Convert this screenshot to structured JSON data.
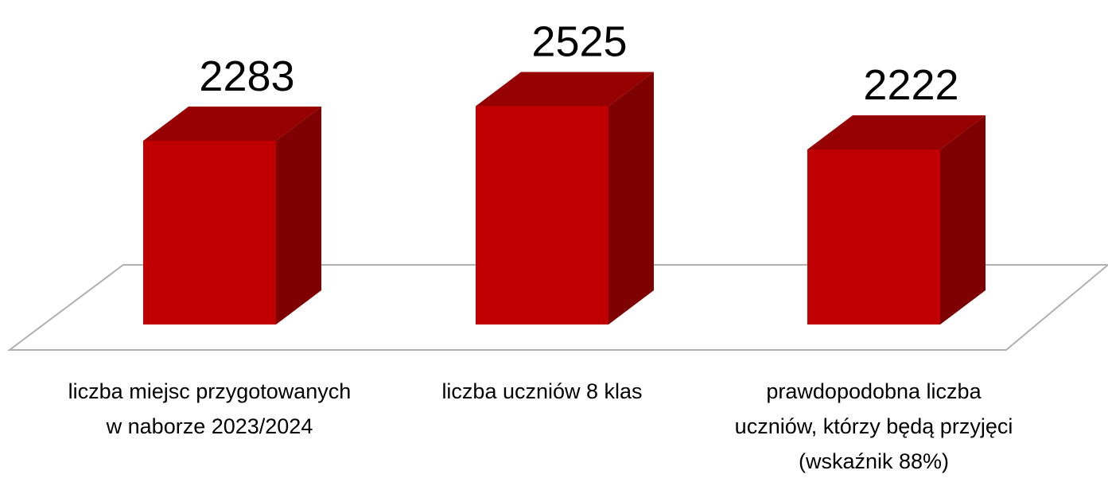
{
  "chart_data": {
    "type": "bar",
    "categories": [
      "liczba miejsc przygotowanych w naborze 2023/2024",
      "liczba uczniów 8 klas",
      "prawdopodobna liczba uczniów, którzy będą przyjęci (wskaźnik 88%)"
    ],
    "values": [
      2283,
      2525,
      2222
    ],
    "color": "#c00000",
    "ylim": [
      1000,
      2600
    ]
  }
}
